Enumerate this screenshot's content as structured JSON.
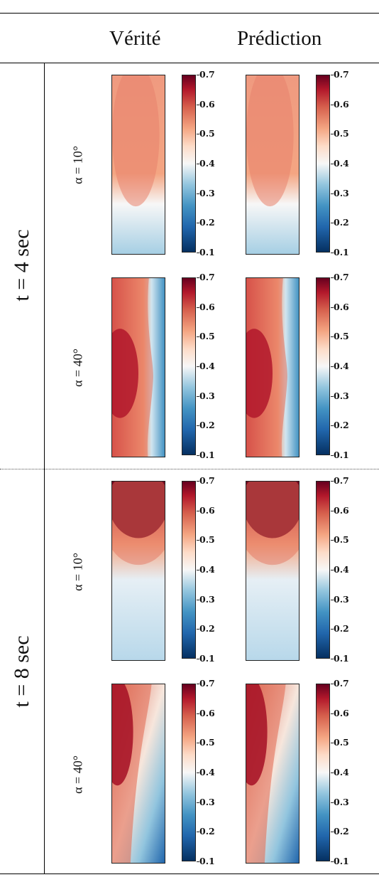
{
  "header": {
    "col_truth": "Vérité",
    "col_pred": "Prédiction"
  },
  "colorbar": {
    "ticks": [
      "0.7",
      "0.6",
      "0.5",
      "0.4",
      "0.3",
      "0.2",
      "0.1"
    ],
    "min": 0.1,
    "max": 0.7,
    "colormap": "RdBu_r"
  },
  "groups": [
    {
      "time_label": "t = 4 sec",
      "rows": [
        {
          "alpha_label": "α = 10°",
          "pattern": "A"
        },
        {
          "alpha_label": "α = 40°",
          "pattern": "B"
        }
      ]
    },
    {
      "time_label": "t = 8 sec",
      "rows": [
        {
          "alpha_label": "α = 10°",
          "pattern": "C"
        },
        {
          "alpha_label": "α = 40°",
          "pattern": "D"
        }
      ]
    }
  ]
}
